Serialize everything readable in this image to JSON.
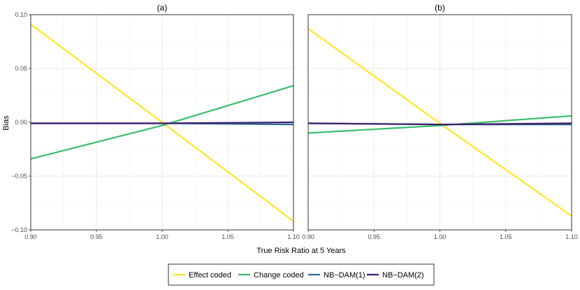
{
  "chart_data": {
    "type": "line",
    "xlabel": "True Risk Ratio at 5 Years",
    "ylabel": "Bias",
    "xlim": [
      0.9,
      1.1
    ],
    "ylim": [
      -0.1,
      0.1
    ],
    "xticks": [
      0.9,
      0.95,
      1.0,
      1.05,
      1.1
    ],
    "xtick_labels": [
      "0.90",
      "0.95",
      "1.00",
      "1.05",
      "1.10"
    ],
    "yticks": [
      -0.1,
      -0.05,
      0.0,
      0.05,
      0.1
    ],
    "ytick_labels": [
      "−0.10",
      "−0.05",
      "0.00",
      "0.05",
      "0.10"
    ],
    "grid": true,
    "legend_position": "bottom",
    "series_style": [
      {
        "name": "Effect coded",
        "color": "#FDE725"
      },
      {
        "name": "Change coded",
        "color": "#3BBD6E"
      },
      {
        "name": "NB−DAM(1)",
        "color": "#2A6E8E"
      },
      {
        "name": "NB−DAM(2)",
        "color": "#3F1E6E"
      }
    ],
    "panels": [
      {
        "title": "(a)",
        "x": [
          0.9,
          1.0,
          1.1
        ],
        "series": [
          {
            "name": "Effect coded",
            "values": [
              0.091,
              0.0,
              -0.092
            ]
          },
          {
            "name": "Change coded",
            "values": [
              -0.034,
              -0.003,
              0.034
            ]
          },
          {
            "name": "NB−DAM(1)",
            "values": [
              -0.001,
              -0.001,
              -0.002
            ]
          },
          {
            "name": "NB−DAM(2)",
            "values": [
              -0.001,
              -0.001,
              0.0
            ]
          }
        ]
      },
      {
        "title": "(b)",
        "x": [
          0.9,
          1.0,
          1.1
        ],
        "series": [
          {
            "name": "Effect coded",
            "values": [
              0.087,
              -0.001,
              -0.087
            ]
          },
          {
            "name": "Change coded",
            "values": [
              -0.01,
              -0.003,
              0.006
            ]
          },
          {
            "name": "NB−DAM(1)",
            "values": [
              -0.001,
              -0.002,
              -0.002
            ]
          },
          {
            "name": "NB−DAM(2)",
            "values": [
              -0.001,
              -0.002,
              -0.001
            ]
          }
        ]
      }
    ]
  }
}
